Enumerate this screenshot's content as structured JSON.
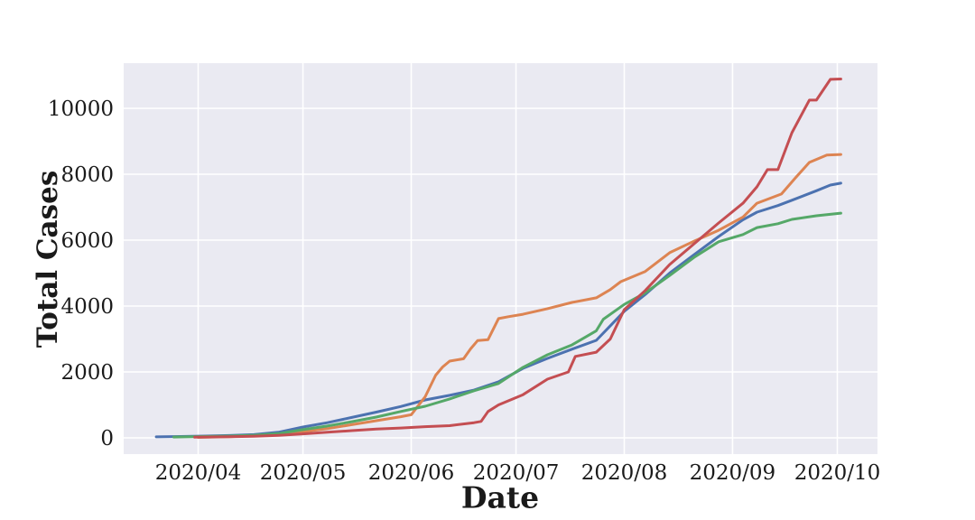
{
  "figure": {
    "background": "#ffffff",
    "plot_background": "#eaeaf2",
    "gridline_color": "#ffffff",
    "text_color": "#1a1a1a"
  },
  "chart_data": {
    "type": "line",
    "title": "",
    "xlabel": "Date",
    "ylabel": "Total Cases",
    "grid": true,
    "legend": "none",
    "y_ticks": [
      0,
      2000,
      4000,
      6000,
      8000,
      10000
    ],
    "y_tick_labels": [
      "0",
      "2000",
      "4000",
      "6000",
      "8000",
      "10000"
    ],
    "ylim": [
      -490,
      11370
    ],
    "x_tick_dates": [
      "2020-04-01",
      "2020-05-01",
      "2020-06-01",
      "2020-07-01",
      "2020-08-01",
      "2020-09-01",
      "2020-10-01"
    ],
    "x_tick_labels": [
      "2020/04",
      "2020/05",
      "2020/06",
      "2020/07",
      "2020/08",
      "2020/09",
      "2020/10"
    ],
    "xlim_dates": [
      "2020-03-11",
      "2020-10-12"
    ],
    "series": [
      {
        "name": "blue",
        "color": "#4c72b0",
        "points": [
          [
            "2020-03-20",
            30
          ],
          [
            "2020-03-27",
            40
          ],
          [
            "2020-04-03",
            55
          ],
          [
            "2020-04-10",
            70
          ],
          [
            "2020-04-17",
            100
          ],
          [
            "2020-04-24",
            170
          ],
          [
            "2020-05-01",
            330
          ],
          [
            "2020-05-08",
            460
          ],
          [
            "2020-05-15",
            620
          ],
          [
            "2020-05-22",
            780
          ],
          [
            "2020-05-29",
            950
          ],
          [
            "2020-06-05",
            1150
          ],
          [
            "2020-06-12",
            1290
          ],
          [
            "2020-06-19",
            1450
          ],
          [
            "2020-06-26",
            1700
          ],
          [
            "2020-07-03",
            2110
          ],
          [
            "2020-07-10",
            2410
          ],
          [
            "2020-07-17",
            2690
          ],
          [
            "2020-07-24",
            2960
          ],
          [
            "2020-07-28",
            3400
          ],
          [
            "2020-08-01",
            3840
          ],
          [
            "2020-08-07",
            4350
          ],
          [
            "2020-08-14",
            5000
          ],
          [
            "2020-08-21",
            5560
          ],
          [
            "2020-08-28",
            6110
          ],
          [
            "2020-09-04",
            6620
          ],
          [
            "2020-09-08",
            6850
          ],
          [
            "2020-09-14",
            7050
          ],
          [
            "2020-09-18",
            7210
          ],
          [
            "2020-09-25",
            7500
          ],
          [
            "2020-09-29",
            7670
          ],
          [
            "2020-10-02",
            7730
          ]
        ]
      },
      {
        "name": "orange",
        "color": "#dd8452",
        "points": [
          [
            "2020-04-01",
            15
          ],
          [
            "2020-04-10",
            35
          ],
          [
            "2020-04-17",
            65
          ],
          [
            "2020-04-24",
            110
          ],
          [
            "2020-05-01",
            190
          ],
          [
            "2020-05-08",
            280
          ],
          [
            "2020-05-15",
            400
          ],
          [
            "2020-05-22",
            520
          ],
          [
            "2020-05-29",
            640
          ],
          [
            "2020-06-01",
            700
          ],
          [
            "2020-06-05",
            1250
          ],
          [
            "2020-06-08",
            1900
          ],
          [
            "2020-06-10",
            2150
          ],
          [
            "2020-06-12",
            2330
          ],
          [
            "2020-06-16",
            2400
          ],
          [
            "2020-06-18",
            2700
          ],
          [
            "2020-06-20",
            2950
          ],
          [
            "2020-06-23",
            2980
          ],
          [
            "2020-06-26",
            3620
          ],
          [
            "2020-06-29",
            3680
          ],
          [
            "2020-07-03",
            3750
          ],
          [
            "2020-07-10",
            3920
          ],
          [
            "2020-07-17",
            4110
          ],
          [
            "2020-07-24",
            4250
          ],
          [
            "2020-07-28",
            4500
          ],
          [
            "2020-07-31",
            4740
          ],
          [
            "2020-08-07",
            5050
          ],
          [
            "2020-08-14",
            5620
          ],
          [
            "2020-08-21",
            5970
          ],
          [
            "2020-08-28",
            6300
          ],
          [
            "2020-09-04",
            6700
          ],
          [
            "2020-09-08",
            7120
          ],
          [
            "2020-09-15",
            7400
          ],
          [
            "2020-09-19",
            7890
          ],
          [
            "2020-09-23",
            8360
          ],
          [
            "2020-09-28",
            8580
          ],
          [
            "2020-10-02",
            8600
          ]
        ]
      },
      {
        "name": "green",
        "color": "#55a868",
        "points": [
          [
            "2020-03-25",
            25
          ],
          [
            "2020-04-03",
            40
          ],
          [
            "2020-04-10",
            55
          ],
          [
            "2020-04-17",
            80
          ],
          [
            "2020-04-24",
            130
          ],
          [
            "2020-05-01",
            250
          ],
          [
            "2020-05-08",
            360
          ],
          [
            "2020-05-15",
            490
          ],
          [
            "2020-05-22",
            630
          ],
          [
            "2020-05-29",
            800
          ],
          [
            "2020-06-05",
            960
          ],
          [
            "2020-06-12",
            1180
          ],
          [
            "2020-06-19",
            1430
          ],
          [
            "2020-06-26",
            1650
          ],
          [
            "2020-07-03",
            2140
          ],
          [
            "2020-07-10",
            2520
          ],
          [
            "2020-07-17",
            2820
          ],
          [
            "2020-07-24",
            3250
          ],
          [
            "2020-07-26",
            3600
          ],
          [
            "2020-08-01",
            4050
          ],
          [
            "2020-08-07",
            4400
          ],
          [
            "2020-08-14",
            4930
          ],
          [
            "2020-08-21",
            5480
          ],
          [
            "2020-08-28",
            5950
          ],
          [
            "2020-09-04",
            6170
          ],
          [
            "2020-09-08",
            6380
          ],
          [
            "2020-09-14",
            6500
          ],
          [
            "2020-09-18",
            6630
          ],
          [
            "2020-09-25",
            6740
          ],
          [
            "2020-10-02",
            6820
          ]
        ]
      },
      {
        "name": "red",
        "color": "#c44e52",
        "points": [
          [
            "2020-03-31",
            20
          ],
          [
            "2020-04-10",
            35
          ],
          [
            "2020-04-17",
            50
          ],
          [
            "2020-04-24",
            75
          ],
          [
            "2020-05-01",
            120
          ],
          [
            "2020-05-08",
            170
          ],
          [
            "2020-05-15",
            220
          ],
          [
            "2020-05-22",
            265
          ],
          [
            "2020-05-29",
            300
          ],
          [
            "2020-06-05",
            340
          ],
          [
            "2020-06-12",
            370
          ],
          [
            "2020-06-19",
            460
          ],
          [
            "2020-06-21",
            500
          ],
          [
            "2020-06-23",
            800
          ],
          [
            "2020-06-26",
            1000
          ],
          [
            "2020-07-03",
            1310
          ],
          [
            "2020-07-10",
            1780
          ],
          [
            "2020-07-16",
            2000
          ],
          [
            "2020-07-18",
            2470
          ],
          [
            "2020-07-24",
            2600
          ],
          [
            "2020-07-28",
            3000
          ],
          [
            "2020-08-01",
            3890
          ],
          [
            "2020-08-07",
            4470
          ],
          [
            "2020-08-14",
            5260
          ],
          [
            "2020-08-21",
            5890
          ],
          [
            "2020-08-28",
            6520
          ],
          [
            "2020-09-04",
            7120
          ],
          [
            "2020-09-08",
            7620
          ],
          [
            "2020-09-11",
            8140
          ],
          [
            "2020-09-14",
            8140
          ],
          [
            "2020-09-18",
            9260
          ],
          [
            "2020-09-23",
            10250
          ],
          [
            "2020-09-25",
            10250
          ],
          [
            "2020-09-29",
            10880
          ],
          [
            "2020-10-02",
            10890
          ]
        ]
      }
    ]
  }
}
